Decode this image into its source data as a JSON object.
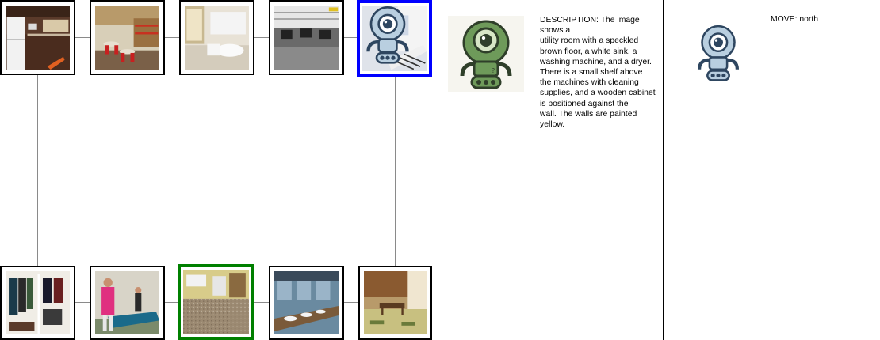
{
  "grid": {
    "top_row": [
      {
        "scene": "kitchen"
      },
      {
        "scene": "cafeteria"
      },
      {
        "scene": "bathroom"
      },
      {
        "scene": "office"
      },
      {
        "scene": "utility room",
        "has_robot": true
      }
    ],
    "bottom_row": [
      {
        "scene": "closet"
      },
      {
        "scene": "ping pong room"
      },
      {
        "scene": "utility room",
        "is_goal": true
      },
      {
        "scene": "washroom"
      },
      {
        "scene": "tatami room"
      }
    ],
    "colors": {
      "current": "#0000ff",
      "goal": "#008000",
      "connector": "#8a8a8a"
    }
  },
  "agent_avatar": {
    "icon": "robot-icon-green"
  },
  "description": {
    "text": "DESCRIPTION: The image shows a\nutility room with a speckled\nbrown floor, a white sink, a\nwashing machine, and a dryer.\nThere is a small shelf above\nthe machines with cleaning\nsupplies, and a wooden cabinet\nis positioned against the\nwall. The walls are painted\nyellow."
  },
  "action": {
    "label": "MOVE: north",
    "icon": "robot-icon-blue"
  }
}
